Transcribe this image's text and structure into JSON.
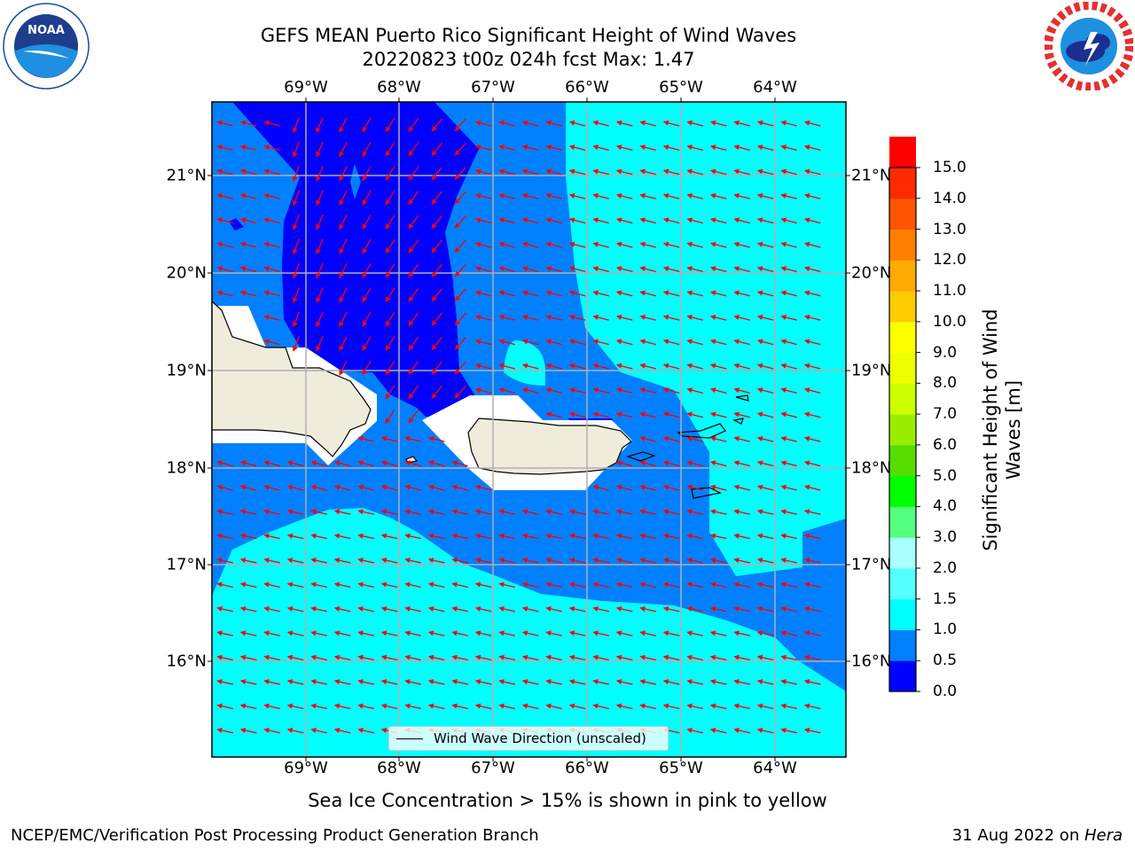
{
  "title": "GEFS MEAN Puerto Rico Significant Height of Wind Waves",
  "subtitle": "20220823 t00z 024h fcst   Max: 1.47",
  "chart_data": {
    "type": "map",
    "variable": "Significant Height of Wind Waves [m]",
    "forecast_max": 1.47,
    "lon_ticks": [
      "69°W",
      "68°W",
      "67°W",
      "66°W",
      "65°W",
      "64°W"
    ],
    "lat_ticks": [
      "21°N",
      "20°N",
      "19°N",
      "18°N",
      "17°N",
      "16°N"
    ],
    "colorbar": {
      "label": "Significant Height of Wind Waves [m]",
      "ticks": [
        "0.0",
        "0.5",
        "1.0",
        "1.5",
        "2.0",
        "3.0",
        "4.0",
        "5.0",
        "6.0",
        "7.0",
        "8.0",
        "9.0",
        "10.0",
        "11.0",
        "12.0",
        "13.0",
        "14.0",
        "15.0"
      ],
      "colors": [
        "#0000ff",
        "#0080ff",
        "#00ffff",
        "#55ffff",
        "#aaffff",
        "#55ff80",
        "#00ff00",
        "#55dd00",
        "#99ee00",
        "#ccff00",
        "#eeff00",
        "#ffff00",
        "#ffcc00",
        "#ffaa00",
        "#ff8000",
        "#ff5500",
        "#ff2a00",
        "#ff0000"
      ]
    },
    "vector_direction": "Wind Wave Direction (unscaled)"
  },
  "legend": {
    "label": "Wind Wave Direction (unscaled)"
  },
  "caption": "Sea Ice Concentration > 15% is shown in pink to yellow",
  "footer": {
    "left": "NCEP/EMC/Verification Post Processing Product Generation Branch",
    "date": "31 Aug 2022 on ",
    "host": "Hera"
  },
  "logos": {
    "left": "noaa-logo",
    "right": "nws-logo"
  },
  "colors": {
    "land": "#efecdc",
    "arrow": "#ff0000",
    "grid": "#b0b0b0"
  }
}
